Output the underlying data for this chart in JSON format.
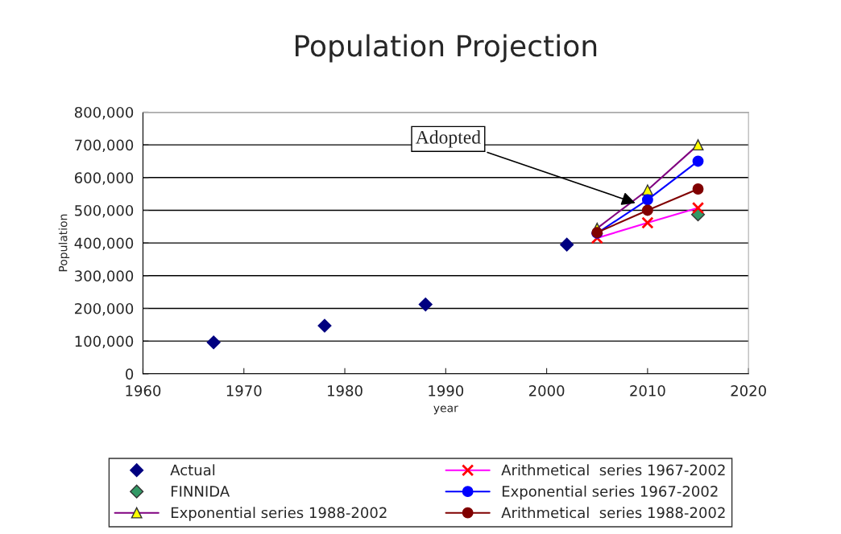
{
  "chart_data": {
    "type": "line",
    "title": "Population Projection",
    "xlabel": "year",
    "ylabel": "Population",
    "xlim": [
      1960,
      2020
    ],
    "xticks": [
      1960,
      1970,
      1980,
      1990,
      2000,
      2010,
      2020
    ],
    "ylim": [
      0,
      800000
    ],
    "yticks": [
      {
        "value": 0,
        "label": "0"
      },
      {
        "value": 100000,
        "label": "100,000"
      },
      {
        "value": 200000,
        "label": "200,000"
      },
      {
        "value": 300000,
        "label": "300,000"
      },
      {
        "value": 400000,
        "label": "400,000"
      },
      {
        "value": 500000,
        "label": "500,000"
      },
      {
        "value": 600000,
        "label": "600,000"
      },
      {
        "value": 700000,
        "label": "700,000"
      },
      {
        "value": 800000,
        "label": "800,000"
      }
    ],
    "grid": "y",
    "legend": "bottom",
    "annotations": [
      {
        "text": "Adopted",
        "x": 2009,
        "y": 520000
      }
    ],
    "series": [
      {
        "name": "Actual",
        "type": "scatter",
        "marker": "diamond",
        "color": "#000080",
        "x": [
          1967,
          1978,
          1988,
          2002
        ],
        "values": [
          96000,
          147000,
          212000,
          395000
        ]
      },
      {
        "name": "FINNIDA",
        "type": "scatter",
        "marker": "diamond",
        "color": "#339966",
        "x": [
          2015
        ],
        "values": [
          487000
        ]
      },
      {
        "name": "Exponential series 1988-2002",
        "marker": "triangle",
        "color": "#800080",
        "x": [
          2005,
          2010,
          2015
        ],
        "values": [
          445000,
          562000,
          700000
        ]
      },
      {
        "name": "Arithmetical  series 1967-2002",
        "marker": "cross",
        "color": "#ff00ff",
        "x": [
          2005,
          2010,
          2015
        ],
        "values": [
          415000,
          462000,
          507000
        ]
      },
      {
        "name": "Exponential series 1967-2002",
        "marker": "circle",
        "color": "#0000ff",
        "x": [
          2005,
          2010,
          2015
        ],
        "values": [
          430000,
          532000,
          650000
        ]
      },
      {
        "name": "Arithmetical  series 1988-2002",
        "marker": "circle",
        "color": "#800000",
        "x": [
          2005,
          2010,
          2015
        ],
        "values": [
          432000,
          500000,
          565000
        ]
      }
    ]
  }
}
